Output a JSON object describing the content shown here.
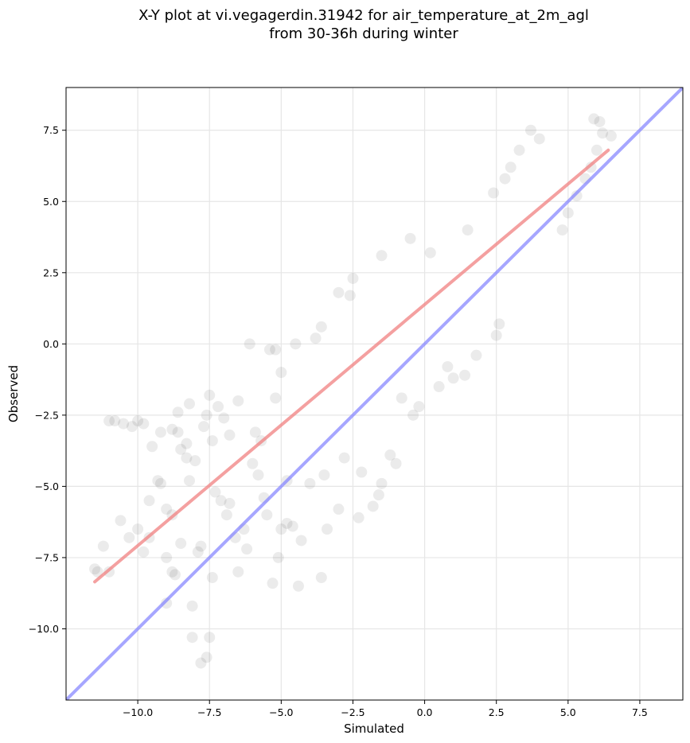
{
  "chart_data": {
    "type": "scatter",
    "title": "X-Y plot at vi.vegagerdin.31942 for air_temperature_at_2m_agl",
    "subtitle": "from 30-36h during winter",
    "xlabel": "Simulated",
    "ylabel": "Observed",
    "xlim": [
      -12.5,
      9.0
    ],
    "ylim": [
      -12.5,
      9.0
    ],
    "xticks": [
      -10.0,
      -7.5,
      -5.0,
      -2.5,
      0.0,
      2.5,
      5.0,
      7.5
    ],
    "xtick_labels": [
      "−10.0",
      "−7.5",
      "−5.0",
      "−2.5",
      "0.0",
      "2.5",
      "5.0",
      "7.5"
    ],
    "yticks": [
      -10.0,
      -7.5,
      -5.0,
      -2.5,
      0.0,
      2.5,
      5.0,
      7.5
    ],
    "ytick_labels": [
      "−10.0",
      "−7.5",
      "−5.0",
      "−2.5",
      "0.0",
      "2.5",
      "5.0",
      "7.5"
    ],
    "grid": true,
    "marker_color": "#000000",
    "marker_alpha": 0.08,
    "regression_line": {
      "color": "#f08080",
      "x": [
        -11.5,
        6.4
      ],
      "y": [
        -8.35,
        6.8
      ]
    },
    "identity_line": {
      "color": "#8080ff",
      "x": [
        -12.5,
        9.0
      ],
      "y": [
        -12.5,
        9.0
      ]
    },
    "points": [
      [
        -11.5,
        -7.9
      ],
      [
        -11.4,
        -8.0
      ],
      [
        -11.0,
        -8.0
      ],
      [
        -11.0,
        -2.7
      ],
      [
        -10.8,
        -2.7
      ],
      [
        -11.2,
        -7.1
      ],
      [
        -10.5,
        -2.8
      ],
      [
        -10.2,
        -2.9
      ],
      [
        -10.0,
        -2.7
      ],
      [
        -9.8,
        -2.8
      ],
      [
        -10.6,
        -6.2
      ],
      [
        -10.0,
        -6.5
      ],
      [
        -9.8,
        -7.3
      ],
      [
        -9.6,
        -5.5
      ],
      [
        -9.3,
        -4.8
      ],
      [
        -9.2,
        -4.9
      ],
      [
        -9.2,
        -3.1
      ],
      [
        -9.0,
        -7.5
      ],
      [
        -8.8,
        -3.0
      ],
      [
        -8.8,
        -6.0
      ],
      [
        -8.6,
        -3.1
      ],
      [
        -9.0,
        -9.1
      ],
      [
        -8.8,
        -8.0
      ],
      [
        -8.7,
        -8.1
      ],
      [
        -8.5,
        -7.0
      ],
      [
        -8.5,
        -3.7
      ],
      [
        -8.3,
        -4.0
      ],
      [
        -8.3,
        -3.5
      ],
      [
        -8.2,
        -2.1
      ],
      [
        -8.0,
        -4.1
      ],
      [
        -8.1,
        -9.2
      ],
      [
        -8.1,
        -10.3
      ],
      [
        -7.8,
        -11.2
      ],
      [
        -7.6,
        -11.0
      ],
      [
        -7.5,
        -10.3
      ],
      [
        -7.8,
        -7.1
      ],
      [
        -7.9,
        -7.3
      ],
      [
        -7.7,
        -2.9
      ],
      [
        -7.6,
        -2.5
      ],
      [
        -7.5,
        -1.8
      ],
      [
        -7.2,
        -2.2
      ],
      [
        -7.0,
        -2.6
      ],
      [
        -7.3,
        -5.2
      ],
      [
        -7.1,
        -5.5
      ],
      [
        -6.9,
        -6.0
      ],
      [
        -6.8,
        -5.6
      ],
      [
        -6.6,
        -6.8
      ],
      [
        -6.5,
        -8.0
      ],
      [
        -7.4,
        -8.2
      ],
      [
        -6.3,
        -6.5
      ],
      [
        -6.2,
        -7.2
      ],
      [
        -6.1,
        -0.0
      ],
      [
        -5.9,
        -3.1
      ],
      [
        -5.8,
        -4.6
      ],
      [
        -5.6,
        -5.4
      ],
      [
        -5.5,
        -6.0
      ],
      [
        -5.4,
        -0.2
      ],
      [
        -5.2,
        -0.2
      ],
      [
        -5.3,
        -8.4
      ],
      [
        -5.1,
        -7.5
      ],
      [
        -5.0,
        -6.5
      ],
      [
        -4.8,
        -6.3
      ],
      [
        -4.6,
        -6.4
      ],
      [
        -4.4,
        -8.5
      ],
      [
        -4.3,
        -6.9
      ],
      [
        -3.6,
        -8.2
      ],
      [
        -3.4,
        -6.5
      ],
      [
        -3.0,
        -5.8
      ],
      [
        -2.3,
        -6.1
      ],
      [
        -1.8,
        -5.7
      ],
      [
        -1.6,
        -5.3
      ],
      [
        -1.5,
        -4.9
      ],
      [
        -1.2,
        -3.9
      ],
      [
        -1.0,
        -4.2
      ],
      [
        -0.8,
        -1.9
      ],
      [
        -0.4,
        -2.5
      ],
      [
        -0.2,
        -2.2
      ],
      [
        0.5,
        -1.5
      ],
      [
        0.8,
        -0.8
      ],
      [
        1.0,
        -1.2
      ],
      [
        1.4,
        -1.1
      ],
      [
        1.8,
        -0.4
      ],
      [
        2.5,
        0.3
      ],
      [
        2.6,
        0.7
      ],
      [
        4.8,
        4.0
      ],
      [
        5.0,
        4.6
      ],
      [
        5.3,
        5.2
      ],
      [
        5.6,
        5.8
      ],
      [
        5.8,
        6.2
      ],
      [
        6.0,
        6.8
      ],
      [
        6.2,
        7.4
      ],
      [
        6.5,
        7.3
      ],
      [
        5.9,
        7.9
      ],
      [
        6.1,
        7.8
      ],
      [
        4.0,
        7.2
      ],
      [
        3.7,
        7.5
      ],
      [
        3.3,
        6.8
      ],
      [
        3.0,
        6.2
      ],
      [
        2.8,
        5.8
      ],
      [
        2.4,
        5.3
      ],
      [
        1.5,
        4.0
      ],
      [
        0.2,
        3.2
      ],
      [
        -0.5,
        3.7
      ],
      [
        -1.5,
        3.1
      ],
      [
        -2.5,
        2.3
      ],
      [
        -2.6,
        1.7
      ],
      [
        -3.0,
        1.8
      ],
      [
        -3.6,
        0.6
      ],
      [
        -3.8,
        0.2
      ],
      [
        -4.5,
        0.0
      ],
      [
        -5.0,
        -1.0
      ],
      [
        -5.2,
        -1.9
      ],
      [
        -6.5,
        -2.0
      ],
      [
        -7.4,
        -3.4
      ],
      [
        -8.2,
        -4.8
      ],
      [
        -9.0,
        -5.8
      ],
      [
        -9.6,
        -6.8
      ],
      [
        -10.3,
        -6.8
      ],
      [
        -9.5,
        -3.6
      ],
      [
        -8.6,
        -2.4
      ],
      [
        -6.8,
        -3.2
      ],
      [
        -6.0,
        -4.2
      ],
      [
        -5.7,
        -3.4
      ],
      [
        -4.8,
        -4.8
      ],
      [
        -4.0,
        -4.9
      ],
      [
        -3.5,
        -4.6
      ],
      [
        -2.8,
        -4.0
      ],
      [
        -2.2,
        -4.5
      ]
    ]
  }
}
